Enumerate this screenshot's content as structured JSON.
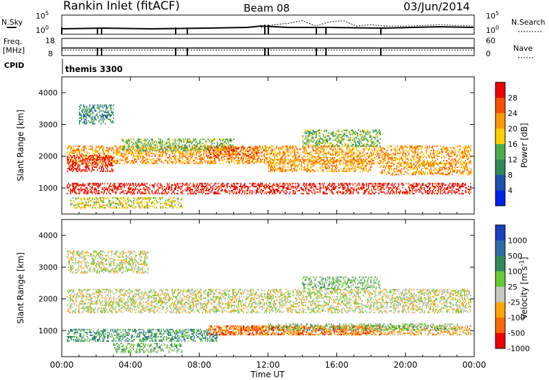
{
  "header": {
    "station": "Rankin Inlet (fitACF)",
    "beam": "Beam 08",
    "date": "03/Jun/2014"
  },
  "left_labels": {
    "nsky": "N.Sky",
    "nsky_top": "10^5",
    "nsky_bot": "10^0",
    "freq": "Freq.",
    "freq_unit": "[MHz]",
    "freq_top": "18",
    "freq_bot": "8",
    "cpid": "CPID"
  },
  "right_labels": {
    "nsearch": "N.Search",
    "nsearch_top": "10^5",
    "nsearch_bot": "10^0",
    "nave": "Nave",
    "nave_top": "60",
    "nave_bot": "0"
  },
  "cpid_text": "themis 3300",
  "time_label": "Time UT",
  "chart_data": [
    {
      "type": "heatmap",
      "parameter": "power",
      "ylabel": "Slant Range [km]",
      "y_ticks": [
        "1000",
        "2000",
        "3000",
        "4000"
      ],
      "ylim": [
        180,
        4500
      ],
      "x_ticks": [
        "00:00",
        "04:00",
        "08:00",
        "12:00",
        "16:00",
        "20:00",
        "00:00"
      ],
      "colorbar_label": "Power [dB]",
      "colorbar_ticks": [
        "4",
        "8",
        "12",
        "16",
        "20",
        "24",
        "28"
      ],
      "colors": [
        "#0022ee",
        "#2050b0",
        "#2e8b57",
        "#4caf4c",
        "#ffd000",
        "#ff9900",
        "#ff5000",
        "#ee0000"
      ],
      "scatter_bands": [
        {
          "t0": 0.3,
          "t1": 23.8,
          "r0": 1750,
          "r1": 2300,
          "level": 5
        },
        {
          "t0": 0.3,
          "t1": 23.8,
          "r0": 800,
          "r1": 1150,
          "level": 7
        },
        {
          "t0": 0.3,
          "t1": 3.0,
          "r0": 1500,
          "r1": 2000,
          "level": 7
        },
        {
          "t0": 3.5,
          "t1": 10.0,
          "r0": 2150,
          "r1": 2550,
          "level": 3
        },
        {
          "t0": 8.5,
          "t1": 11.5,
          "r0": 1900,
          "r1": 2300,
          "level": 6
        },
        {
          "t0": 12.0,
          "t1": 18.0,
          "r0": 1500,
          "r1": 1900,
          "level": 5
        },
        {
          "t0": 0.5,
          "t1": 7.0,
          "r0": 350,
          "r1": 700,
          "level": 4
        },
        {
          "t0": 18.5,
          "t1": 23.8,
          "r0": 1400,
          "r1": 1800,
          "level": 5
        },
        {
          "t0": 1.0,
          "t1": 3.0,
          "r0": 3000,
          "r1": 3600,
          "level": 2
        },
        {
          "t0": 14.0,
          "t1": 18.5,
          "r0": 2300,
          "r1": 2800,
          "level": 3
        }
      ]
    },
    {
      "type": "heatmap",
      "parameter": "velocity",
      "ylabel": "Slant Range [km]",
      "y_ticks": [
        "1000",
        "2000",
        "3000",
        "4000"
      ],
      "ylim": [
        180,
        4500
      ],
      "x_ticks": [
        "00:00",
        "04:00",
        "08:00",
        "12:00",
        "16:00",
        "20:00",
        "00:00"
      ],
      "xlabel": "Time UT",
      "colorbar_label": "Velocity [m s^-1]",
      "colorbar_ticks": [
        "1000",
        "500",
        "100",
        "25",
        "-25",
        "-100",
        "-500",
        "-1000"
      ],
      "colors": [
        "#1a3fbf",
        "#2e6ea8",
        "#2e8b57",
        "#66cc33",
        "#c8c8c0",
        "#ffa500",
        "#ff6a00",
        "#ee0000"
      ],
      "scatter_bands": [
        {
          "t0": 0.3,
          "t1": 23.8,
          "r0": 1550,
          "r1": 2300,
          "level": 4
        },
        {
          "t0": 9.0,
          "t1": 23.8,
          "r0": 850,
          "r1": 1150,
          "level": 5
        },
        {
          "t0": 0.3,
          "t1": 9.0,
          "r0": 650,
          "r1": 1050,
          "level": 2
        },
        {
          "t0": 8.5,
          "t1": 18.5,
          "r0": 850,
          "r1": 1150,
          "level": 6
        },
        {
          "t0": 0.3,
          "t1": 5.0,
          "r0": 2800,
          "r1": 3500,
          "level": 4
        },
        {
          "t0": 12.0,
          "t1": 23.0,
          "r0": 1000,
          "r1": 1200,
          "level": 3
        },
        {
          "t0": 3.0,
          "t1": 7.0,
          "r0": 300,
          "r1": 600,
          "level": 3
        },
        {
          "t0": 14.0,
          "t1": 18.5,
          "r0": 2300,
          "r1": 2700,
          "level": 3
        }
      ]
    }
  ]
}
